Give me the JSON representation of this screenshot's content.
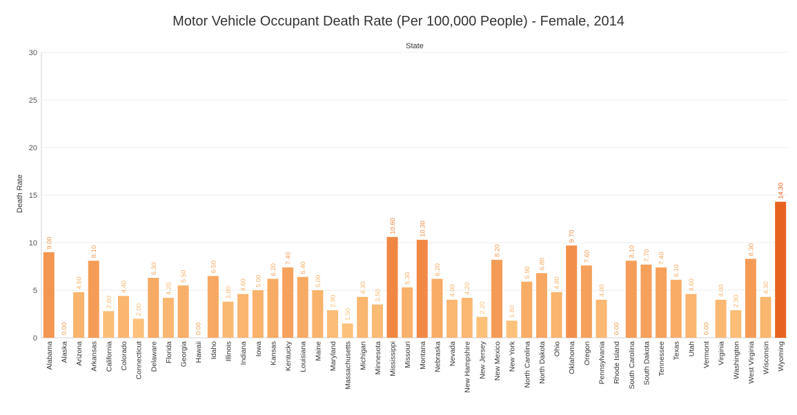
{
  "chart_data": {
    "type": "bar",
    "title": "Motor Vehicle Occupant Death Rate (Per 100,000 People) - Female, 2014",
    "xlabel": "State",
    "ylabel": "Death Rate",
    "ylim": [
      0,
      30
    ],
    "yticks": [
      0,
      5,
      10,
      15,
      20,
      25,
      30
    ],
    "grid": true,
    "categories": [
      "Alabama",
      "Alaska",
      "Arizona",
      "Arkansas",
      "California",
      "Colorado",
      "Connecticut",
      "Delaware",
      "Florida",
      "Georgia",
      "Hawaii",
      "Idaho",
      "Illinois",
      "Indiana",
      "Iowa",
      "Kansas",
      "Kentucky",
      "Louisiana",
      "Maine",
      "Maryland",
      "Massachusetts",
      "Michigan",
      "Minnesota",
      "Mississippi",
      "Missouri",
      "Montana",
      "Nebraska",
      "Nevada",
      "New Hampshire",
      "New Jersey",
      "New Mexico",
      "New York",
      "North Carolina",
      "North Dakota",
      "Ohio",
      "Oklahoma",
      "Oregon",
      "Pennsylvania",
      "Rhode Island",
      "South Carolina",
      "South Dakota",
      "Tennessee",
      "Texas",
      "Utah",
      "Vermont",
      "Virginia",
      "Washington",
      "West Virginia",
      "Wisconsin",
      "Wyoming"
    ],
    "values": [
      9.0,
      0.0,
      4.8,
      8.1,
      2.8,
      4.4,
      2.0,
      6.3,
      4.2,
      5.5,
      0.0,
      6.5,
      3.8,
      4.6,
      5.0,
      6.2,
      7.4,
      6.4,
      5.0,
      2.9,
      1.5,
      4.3,
      3.5,
      10.6,
      5.3,
      10.3,
      6.2,
      4.0,
      4.2,
      2.2,
      8.2,
      1.8,
      5.9,
      6.8,
      4.8,
      9.7,
      7.6,
      4.0,
      0.0,
      8.1,
      7.7,
      7.4,
      6.1,
      4.6,
      0.0,
      4.0,
      2.9,
      8.3,
      4.3,
      14.3
    ],
    "data_labels": [
      "9.00",
      "0.00",
      "4.80",
      "8.10",
      "2.80",
      "4.40",
      "2.00",
      "6.30",
      "4.20",
      "5.50",
      "0.00",
      "6.50",
      "3.80",
      "4.60",
      "5.00",
      "6.20",
      "7.40",
      "6.40",
      "5.00",
      "2.90",
      "1.50",
      "4.30",
      "3.50",
      "10.60",
      "5.30",
      "10.30",
      "6.20",
      "4.00",
      "4.20",
      "2.20",
      "8.20",
      "1.80",
      "5.90",
      "6.80",
      "4.80",
      "9.70",
      "7.60",
      "4.00",
      "0.00",
      "8.10",
      "7.70",
      "7.40",
      "6.10",
      "4.60",
      "0.00",
      "4.00",
      "2.90",
      "8.30",
      "4.30",
      "14.30"
    ],
    "color_scale": [
      "#fdc57e",
      "#e8621f"
    ]
  }
}
